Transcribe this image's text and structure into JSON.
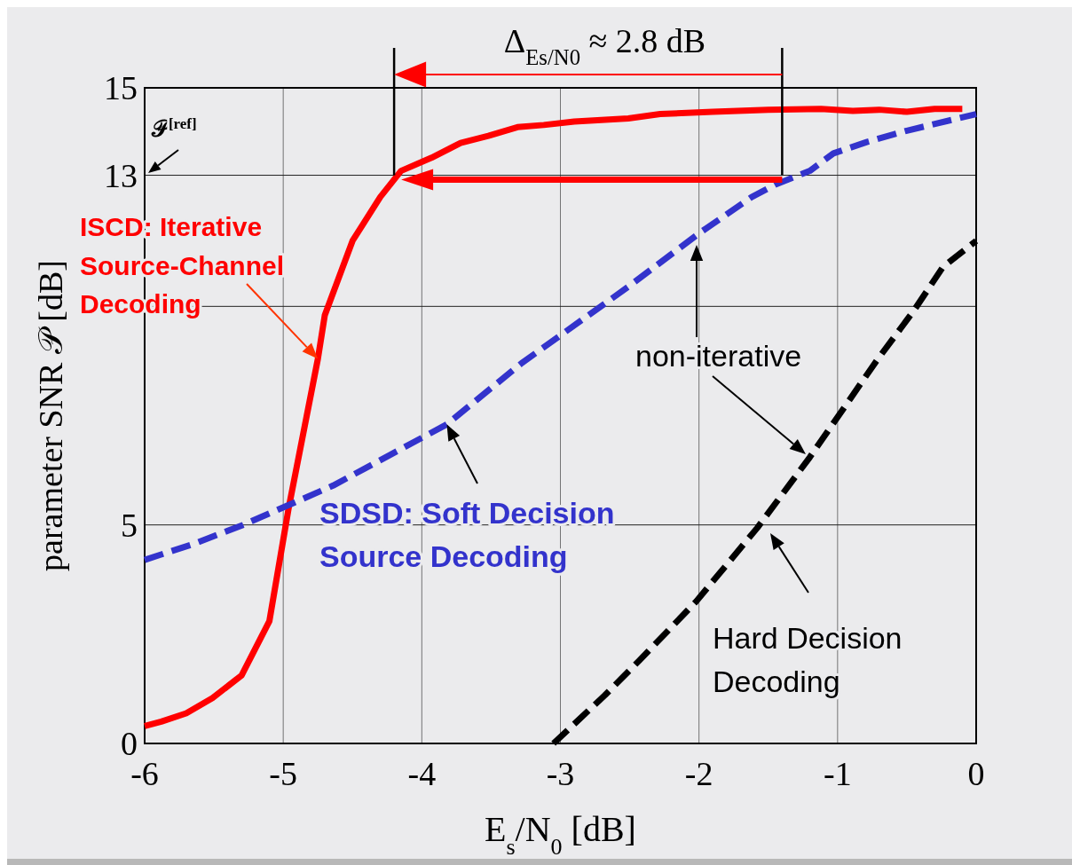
{
  "chart_data": {
    "type": "line",
    "xlabel": "E$_{s}$/N$_{0}$ [dB]",
    "ylabel": "parameter SNR 𝒫 [dB]",
    "xlim": [
      -6,
      0
    ],
    "xticks": [
      -6,
      -5,
      -4,
      -3,
      -2,
      -1,
      0
    ],
    "ylim": [
      0,
      15
    ],
    "yticks": [
      0,
      5,
      {
        "value": 10,
        "label": null
      },
      13,
      15
    ],
    "grid": true,
    "series": [
      {
        "color": "#ff0000",
        "line_style": "solid",
        "x": [
          -6,
          -5.88,
          -5.7,
          -5.51,
          -5.3,
          -5.1,
          -4.96,
          -4.75,
          -4.7,
          -4.5,
          -4.3,
          -4.15,
          -3.93,
          -3.72,
          -3.52,
          -3.31,
          -3.12,
          -2.9,
          -2.51,
          -2.28,
          -1.9,
          -1.5,
          -1.12,
          -0.89,
          -0.7,
          -0.5,
          -0.3,
          -0.1
        ],
        "values": [
          0.4,
          0.5,
          0.69,
          1.04,
          1.56,
          2.8,
          5.4,
          8.8,
          9.8,
          11.5,
          12.5,
          13.1,
          13.4,
          13.74,
          13.9,
          14.1,
          14.15,
          14.23,
          14.3,
          14.4,
          14.45,
          14.5,
          14.52,
          14.47,
          14.5,
          14.45,
          14.52,
          14.52
        ]
      },
      {
        "color": "#3333cc",
        "line_style": "dashed",
        "x": [
          -6,
          -5.66,
          -5.29,
          -4.64,
          -3.82,
          -3.28,
          -2.51,
          -2.0,
          -1.62,
          -1.44,
          -1.2,
          -1.03,
          -0.79,
          -0.5,
          0
        ],
        "values": [
          4.2,
          4.55,
          5.0,
          5.9,
          7.3,
          8.7,
          10.45,
          11.67,
          12.5,
          12.8,
          13.1,
          13.5,
          13.76,
          14.02,
          14.4
        ]
      },
      {
        "color": "#000000",
        "line_style": "dashed",
        "x": [
          -3.05,
          -2.68,
          -2.43,
          -2.02,
          -1.58,
          -1.2,
          -0.72,
          -0.45,
          -0.24,
          0
        ],
        "values": [
          0,
          1.1,
          1.9,
          3.25,
          4.93,
          6.55,
          8.75,
          9.9,
          10.9,
          11.5
        ]
      }
    ],
    "ref_lines": [
      {
        "axis": "x",
        "value": -4.2,
        "color": "#000000"
      },
      {
        "axis": "x",
        "value": -1.4,
        "color": "#000000"
      }
    ],
    "annotations": [
      {
        "text": "Δ$_{Es/N0}$ ≈ 2.8 dB"
      },
      "𝒫$^{[ref]}$",
      {
        "text": "ISCD: Iterative\nSource-Channel\nDecoding",
        "x": -4.75,
        "y": 8.8
      },
      {
        "text": "SDSD: Soft Decision\nSource Decoding",
        "x": -3.82,
        "y": 7.3
      },
      "non-iterative",
      "Hard Decision\nDecoding"
    ]
  }
}
